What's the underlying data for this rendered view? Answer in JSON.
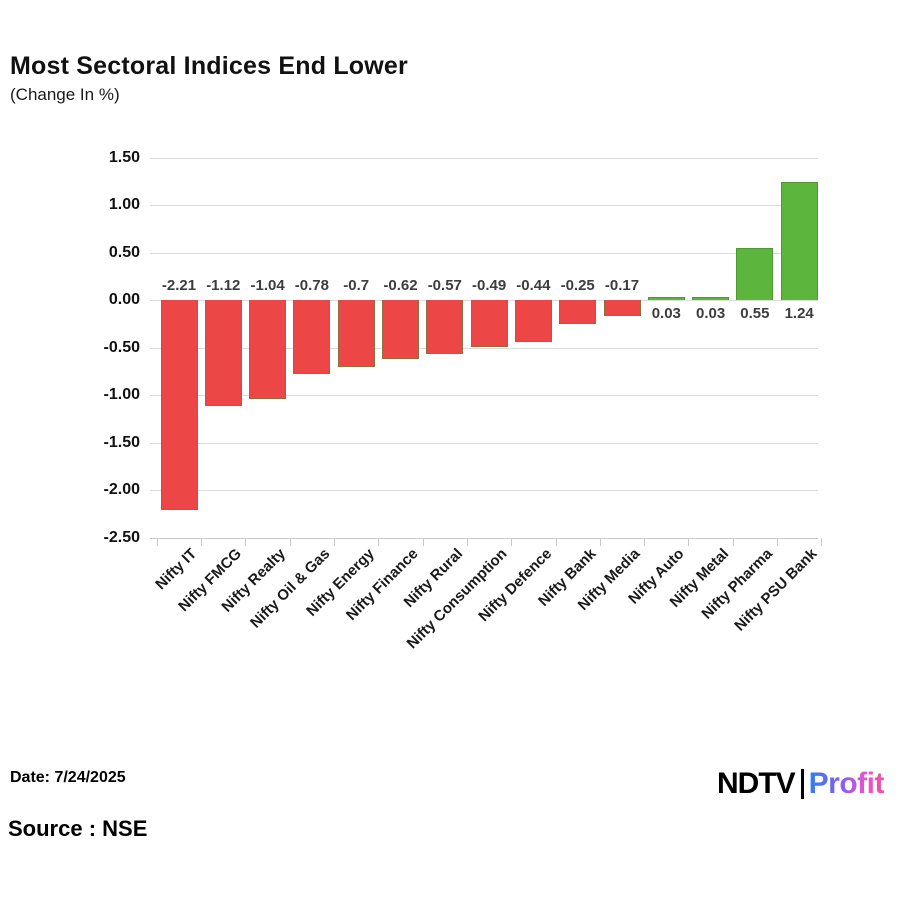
{
  "title": "Most Sectoral Indices End Lower",
  "subtitle": "(Change In %)",
  "footer": {
    "date_label": "Date: 7/24/2025",
    "source_label": "Source : NSE"
  },
  "logo": {
    "ndtv_text": "NDTV",
    "profit_text": "Profit"
  },
  "colors": {
    "negative_bar": "#ED4646",
    "negative_bar_border": "#8E6D3F",
    "positive_bar": "#5CB53C",
    "positive_bar_border": "#4F9A2D",
    "gridline": "#dcdcdc",
    "profit_gradient_start": "#2E7EF5",
    "profit_gradient_end": "#F2519F"
  },
  "chart_data": {
    "type": "bar",
    "title": "Most Sectoral Indices End Lower",
    "xlabel": "",
    "ylabel": "Change In %",
    "ylim": [
      -2.5,
      1.5
    ],
    "grid": true,
    "legend": "none",
    "yticks": [
      "1.50",
      "1.00",
      "0.50",
      "0.00",
      "-0.50",
      "-1.00",
      "-1.50",
      "-2.00",
      "-2.50"
    ],
    "ytick_values": [
      1.5,
      1.0,
      0.5,
      0.0,
      -0.5,
      -1.0,
      -1.5,
      -2.0,
      -2.5
    ],
    "categories": [
      "Nifty IT",
      "Nifty FMCG",
      "Nifty Realty",
      "Nifty Oil & Gas",
      "Nifty Energy",
      "Nifty Finance",
      "Nifty Rural",
      "Nifty Consumption",
      "Nifty Defence",
      "Nifty Bank",
      "Nifty Media",
      "Nifty Auto",
      "Nifty Metal",
      "Nifty Pharma",
      "Nifty PSU Bank"
    ],
    "values": [
      -2.21,
      -1.12,
      -1.04,
      -0.78,
      -0.7,
      -0.62,
      -0.57,
      -0.49,
      -0.44,
      -0.25,
      -0.17,
      0.03,
      0.03,
      0.55,
      1.24
    ],
    "value_labels": [
      "-2.21",
      "-1.12",
      "-1.04",
      "-0.78",
      "-0.7",
      "-0.62",
      "-0.57",
      "-0.49",
      "-0.44",
      "-0.25",
      "-0.17",
      "0.03",
      "0.03",
      "0.55",
      "1.24"
    ]
  }
}
